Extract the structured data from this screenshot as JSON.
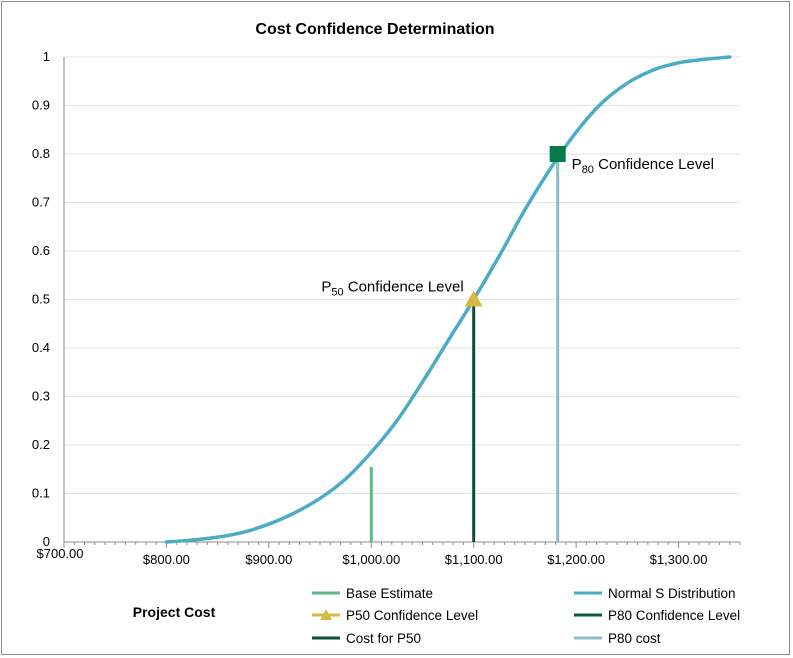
{
  "chart_data": {
    "type": "line",
    "title": "Cost Confidence Determination",
    "xlabel": "Project Cost",
    "ylabel": "",
    "xlim": [
      700,
      1360
    ],
    "ylim": [
      0,
      1
    ],
    "x_ticks": [
      {
        "value": 700,
        "label": "$700.00"
      },
      {
        "value": 800,
        "label": "$800.00"
      },
      {
        "value": 900,
        "label": "$900.00"
      },
      {
        "value": 1000,
        "label": "$1,000.00"
      },
      {
        "value": 1100,
        "label": "$1,100.00"
      },
      {
        "value": 1200,
        "label": "$1,200.00"
      },
      {
        "value": 1300,
        "label": "$1,300.00"
      }
    ],
    "y_ticks": [
      {
        "value": 0,
        "label": "0"
      },
      {
        "value": 0.1,
        "label": "0.1"
      },
      {
        "value": 0.2,
        "label": "0.2"
      },
      {
        "value": 0.3,
        "label": "0.3"
      },
      {
        "value": 0.4,
        "label": "0.4"
      },
      {
        "value": 0.5,
        "label": "0.5"
      },
      {
        "value": 0.6,
        "label": "0.6"
      },
      {
        "value": 0.7,
        "label": "0.7"
      },
      {
        "value": 0.8,
        "label": "0.8"
      },
      {
        "value": 0.9,
        "label": "0.9"
      },
      {
        "value": 1,
        "label": "1"
      }
    ],
    "grid": true,
    "series": [
      {
        "name": "Normal S Distribution",
        "kind": "line",
        "color": "#4bacc6",
        "x": [
          800,
          825,
          850,
          875,
          900,
          925,
          950,
          975,
          1000,
          1025,
          1050,
          1075,
          1100,
          1125,
          1150,
          1175,
          1200,
          1225,
          1250,
          1275,
          1300,
          1325,
          1350
        ],
        "y": [
          0.0,
          0.004,
          0.01,
          0.02,
          0.037,
          0.06,
          0.09,
          0.13,
          0.185,
          0.25,
          0.33,
          0.415,
          0.5,
          0.59,
          0.685,
          0.77,
          0.845,
          0.905,
          0.946,
          0.973,
          0.988,
          0.995,
          1.0
        ]
      },
      {
        "name": "Base Estimate",
        "kind": "vline",
        "color": "#5dba8a",
        "x": 1000,
        "y": 0.155
      },
      {
        "name": "P50 Confidence Level",
        "kind": "marker",
        "marker": "triangle",
        "color": "#d4bb3f",
        "x": 1100,
        "y": 0.5
      },
      {
        "name": "Cost for P50",
        "kind": "vline",
        "color": "#0b4d3a",
        "x": 1100,
        "y": 0.5
      },
      {
        "name": "P80 Confidence Level",
        "kind": "marker",
        "marker": "square",
        "color": "#047a4a",
        "x": 1182,
        "y": 0.8
      },
      {
        "name": "P80 cost",
        "kind": "vline",
        "color": "#87bfcb",
        "x": 1182,
        "y": 0.8
      }
    ],
    "annotations": {
      "p50": {
        "prefix": "P",
        "sub": "50",
        "suffix": " Confidence Level"
      },
      "p80": {
        "prefix": "P",
        "sub": "80",
        "suffix": " Confidence Level"
      }
    },
    "legend": [
      {
        "label": "Base Estimate",
        "style": "line",
        "color": "#5dba8a"
      },
      {
        "label": "Normal S Distribution",
        "style": "line",
        "color": "#4bacc6"
      },
      {
        "label": "P50 Confidence Level",
        "style": "line-triangle",
        "color": "#d4bb3f"
      },
      {
        "label": "P80 Confidence Level",
        "style": "line",
        "color": "#0b5e3c"
      },
      {
        "label": "Cost for P50",
        "style": "line",
        "color": "#0b4d3a"
      },
      {
        "label": "P80 cost",
        "style": "line",
        "color": "#87bfcb"
      }
    ]
  }
}
